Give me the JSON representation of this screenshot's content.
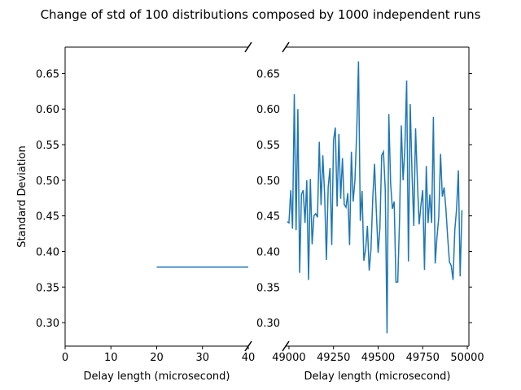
{
  "chart_data": [
    {
      "type": "line",
      "title": "Change of std of 100 distributions composed by 1000 independent runs",
      "x_label": "Delay length (microsecond)",
      "y_label": "Standard Deviation",
      "x": [
        20,
        40
      ],
      "series": [
        {
          "color": "#1f77b4",
          "values": [
            0.378,
            0.378
          ]
        }
      ],
      "xlim": [
        0,
        40
      ],
      "xticks": [
        0,
        10,
        20,
        30,
        40
      ],
      "ylim": [
        0.267,
        0.687
      ],
      "yticks": [
        {
          "value": 0.3,
          "label": "0.30"
        },
        0.35,
        {
          "value": 0.4,
          "label": "0.40"
        },
        0.45,
        {
          "value": 0.5,
          "label": "0.50"
        },
        0.55,
        {
          "value": 0.6,
          "label": "0.60"
        },
        0.65
      ]
    },
    {
      "type": "line",
      "x_label": "Delay length (microsecond)",
      "x": [
        48990,
        49000,
        49010,
        49020,
        49030,
        49040,
        49050,
        49060,
        49070,
        49080,
        49090,
        49100,
        49110,
        49120,
        49130,
        49140,
        49150,
        49160,
        49170,
        49180,
        49190,
        49200,
        49210,
        49220,
        49230,
        49240,
        49250,
        49260,
        49270,
        49280,
        49290,
        49300,
        49310,
        49320,
        49330,
        49340,
        49350,
        49360,
        49370,
        49380,
        49390,
        49400,
        49410,
        49420,
        49430,
        49440,
        49450,
        49460,
        49470,
        49480,
        49490,
        49500,
        49510,
        49520,
        49530,
        49540,
        49550,
        49560,
        49570,
        49580,
        49590,
        49600,
        49610,
        49620,
        49630,
        49640,
        49650,
        49660,
        49670,
        49680,
        49690,
        49700,
        49710,
        49720,
        49730,
        49740,
        49750,
        49760,
        49770,
        49780,
        49790,
        49800,
        49810,
        49820,
        49830,
        49840,
        49850,
        49860,
        49870,
        49880,
        49890,
        49900,
        49910,
        49920,
        49930,
        49940,
        49950,
        49960,
        49970
      ],
      "series": [
        {
          "color": "#1f77b4",
          "values": [
            0.442,
            0.44,
            0.486,
            0.432,
            0.621,
            0.43,
            0.6,
            0.37,
            0.48,
            0.486,
            0.44,
            0.5,
            0.36,
            0.502,
            0.41,
            0.45,
            0.453,
            0.448,
            0.554,
            0.465,
            0.535,
            0.48,
            0.388,
            0.49,
            0.517,
            0.409,
            0.556,
            0.574,
            0.463,
            0.565,
            0.474,
            0.531,
            0.466,
            0.462,
            0.482,
            0.409,
            0.54,
            0.47,
            0.5,
            0.568,
            0.667,
            0.443,
            0.485,
            0.387,
            0.403,
            0.436,
            0.373,
            0.403,
            0.475,
            0.523,
            0.456,
            0.398,
            0.433,
            0.535,
            0.54,
            0.487,
            0.285,
            0.593,
            0.496,
            0.46,
            0.47,
            0.357,
            0.357,
            0.443,
            0.577,
            0.5,
            0.545,
            0.64,
            0.386,
            0.607,
            0.51,
            0.436,
            0.573,
            0.5,
            0.438,
            0.465,
            0.486,
            0.374,
            0.52,
            0.44,
            0.48,
            0.44,
            0.589,
            0.383,
            0.42,
            0.448,
            0.537,
            0.477,
            0.49,
            0.46,
            0.42,
            0.385,
            0.38,
            0.36,
            0.43,
            0.46,
            0.514,
            0.365,
            0.458
          ]
        }
      ],
      "xlim": [
        48982,
        50009
      ],
      "xticks": [
        49000,
        49250,
        49500,
        49750,
        50000
      ],
      "ylim": [
        0.267,
        0.687
      ],
      "yticks": [
        {
          "value": 0.3,
          "label": "0.30"
        },
        0.35,
        {
          "value": 0.4,
          "label": "0.40"
        },
        0.45,
        {
          "value": 0.5,
          "label": "0.50"
        },
        0.55,
        {
          "value": 0.6,
          "label": "0.60"
        },
        0.65
      ]
    }
  ]
}
